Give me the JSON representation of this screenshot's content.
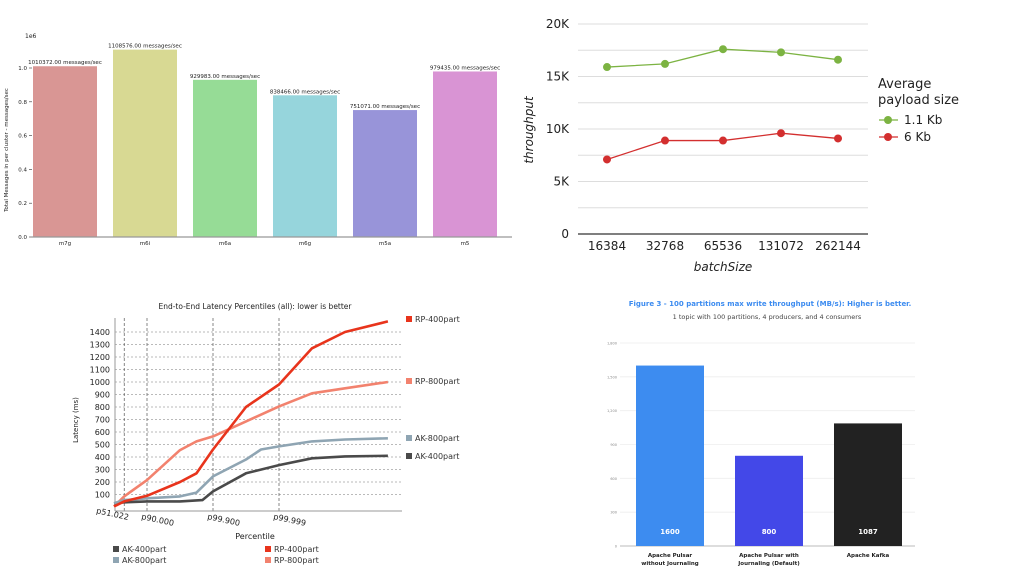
{
  "chart_data": [
    {
      "type": "bar",
      "title": "",
      "ylabel": "Total Messages in per cluster - messages/sec",
      "xlabel": "",
      "scale_label": "1e6",
      "ylim": [
        0,
        1.15
      ],
      "yticks": [
        0.0,
        0.2,
        0.4,
        0.6,
        0.8,
        1.0
      ],
      "ytick_labels": [
        "0.0",
        "0.2",
        "0.4",
        "0.6",
        "0.8",
        "1.0"
      ],
      "categories": [
        "m7g",
        "m6i",
        "m6a",
        "m6g",
        "m5a",
        "m5"
      ],
      "values": [
        1010372,
        1108576,
        929983,
        838466,
        751071,
        979435
      ],
      "data_labels": [
        "1010372.00 messages/sec",
        "1108576.00 messages/sec",
        "929983.00 messages/sec",
        "838466.00 messages/sec",
        "751071.00 messages/sec",
        "979435.00 messages/sec"
      ],
      "colors": [
        "#d99694",
        "#d8d993",
        "#96dc96",
        "#96d5dc",
        "#9894d9",
        "#d994d4"
      ],
      "grid": false
    },
    {
      "type": "line",
      "xlabel": "batchSize",
      "ylabel": "throughput",
      "categories": [
        "16384",
        "32768",
        "65536",
        "131072",
        "262144"
      ],
      "ylim": [
        0,
        20000
      ],
      "yticks": [
        0,
        5000,
        10000,
        15000,
        20000
      ],
      "ytick_labels": [
        "0",
        "5K",
        "10K",
        "15K",
        "20K"
      ],
      "grid": true,
      "legend_title": [
        "Average",
        "payload size"
      ],
      "legend_position": "right",
      "series": [
        {
          "name": "1.1 Kb",
          "color": "#7cb342",
          "values": [
            15900,
            16200,
            17600,
            17300,
            16600
          ]
        },
        {
          "name": "6 Kb",
          "color": "#d32f2f",
          "values": [
            7100,
            8900,
            8900,
            9600,
            9100
          ]
        }
      ]
    },
    {
      "type": "line",
      "title": "End-to-End Latency Percentiles (all): lower is better",
      "xlabel": "Percentile",
      "ylabel": "Latency (ms)",
      "x_scale": "percentile-nines",
      "xticks": [
        51.022,
        90.0,
        99.9,
        99.999
      ],
      "xtick_labels": [
        "p51.022",
        "p90.000",
        "p99.900",
        "p99.999"
      ],
      "ylim": [
        0,
        1500
      ],
      "yticks": [
        100,
        200,
        300,
        400,
        500,
        600,
        700,
        800,
        900,
        1000,
        1100,
        1200,
        1300,
        1400
      ],
      "grid": true,
      "legend_position": "bottom",
      "series": [
        {
          "name": "RP-400part",
          "color": "#e8341c",
          "x": [
            0,
            51.022,
            90,
            99,
            99.684,
            99.9,
            99.99,
            99.999,
            99.9999,
            99.99999,
            99.9999995
          ],
          "y": [
            5,
            45,
            90,
            200,
            270,
            460,
            800,
            980,
            1270,
            1400,
            1485
          ]
        },
        {
          "name": "RP-800part",
          "color": "#f2826e",
          "x": [
            0,
            51.022,
            90,
            99,
            99.684,
            99.9,
            99.99,
            99.999,
            99.9999,
            99.99999,
            99.9999995
          ],
          "y": [
            5,
            85,
            215,
            455,
            525,
            565,
            685,
            805,
            910,
            950,
            1000
          ]
        },
        {
          "name": "AK-800part",
          "color": "#8fa5b3",
          "x": [
            0,
            51.022,
            90,
            99,
            99.684,
            99.9,
            99.99,
            99.9965,
            99.999,
            99.9999,
            99.99999,
            99.9999995
          ],
          "y": [
            30,
            55,
            70,
            85,
            115,
            245,
            380,
            460,
            485,
            525,
            540,
            550
          ]
        },
        {
          "name": "AK-400part",
          "color": "#4a4a4a",
          "x": [
            0,
            51.022,
            90,
            99,
            99.79,
            99.9,
            99.99,
            99.999,
            99.9999,
            99.99999,
            99.9999995
          ],
          "y": [
            30,
            38,
            45,
            45,
            55,
            125,
            270,
            335,
            390,
            405,
            410
          ]
        }
      ]
    },
    {
      "type": "bar",
      "title": "Figure 3  -  100 partitions max write throughput (MB/s): Higher is better.",
      "subtitle": "1 topic with 100 partitions, 4 producers, and 4 consumers",
      "ylim": [
        0,
        1800
      ],
      "yticks": [
        0,
        300,
        600,
        900,
        1200,
        1500,
        1800
      ],
      "ytick_labels": [
        "0",
        "300",
        "600",
        "900",
        "1,200",
        "1,500",
        "1,800"
      ],
      "grid": true,
      "categories": [
        [
          "Apache Pulsar",
          "without Journaling"
        ],
        [
          "Apache Pulsar with",
          "Journaling (Default)"
        ],
        [
          "Apache Kafka"
        ]
      ],
      "values": [
        1600,
        800,
        1087
      ],
      "data_labels": [
        "1600",
        "800",
        "1087"
      ],
      "colors": [
        "#3d8cf0",
        "#4348e8",
        "#222222"
      ],
      "title_color": "#3d8cf0"
    }
  ]
}
